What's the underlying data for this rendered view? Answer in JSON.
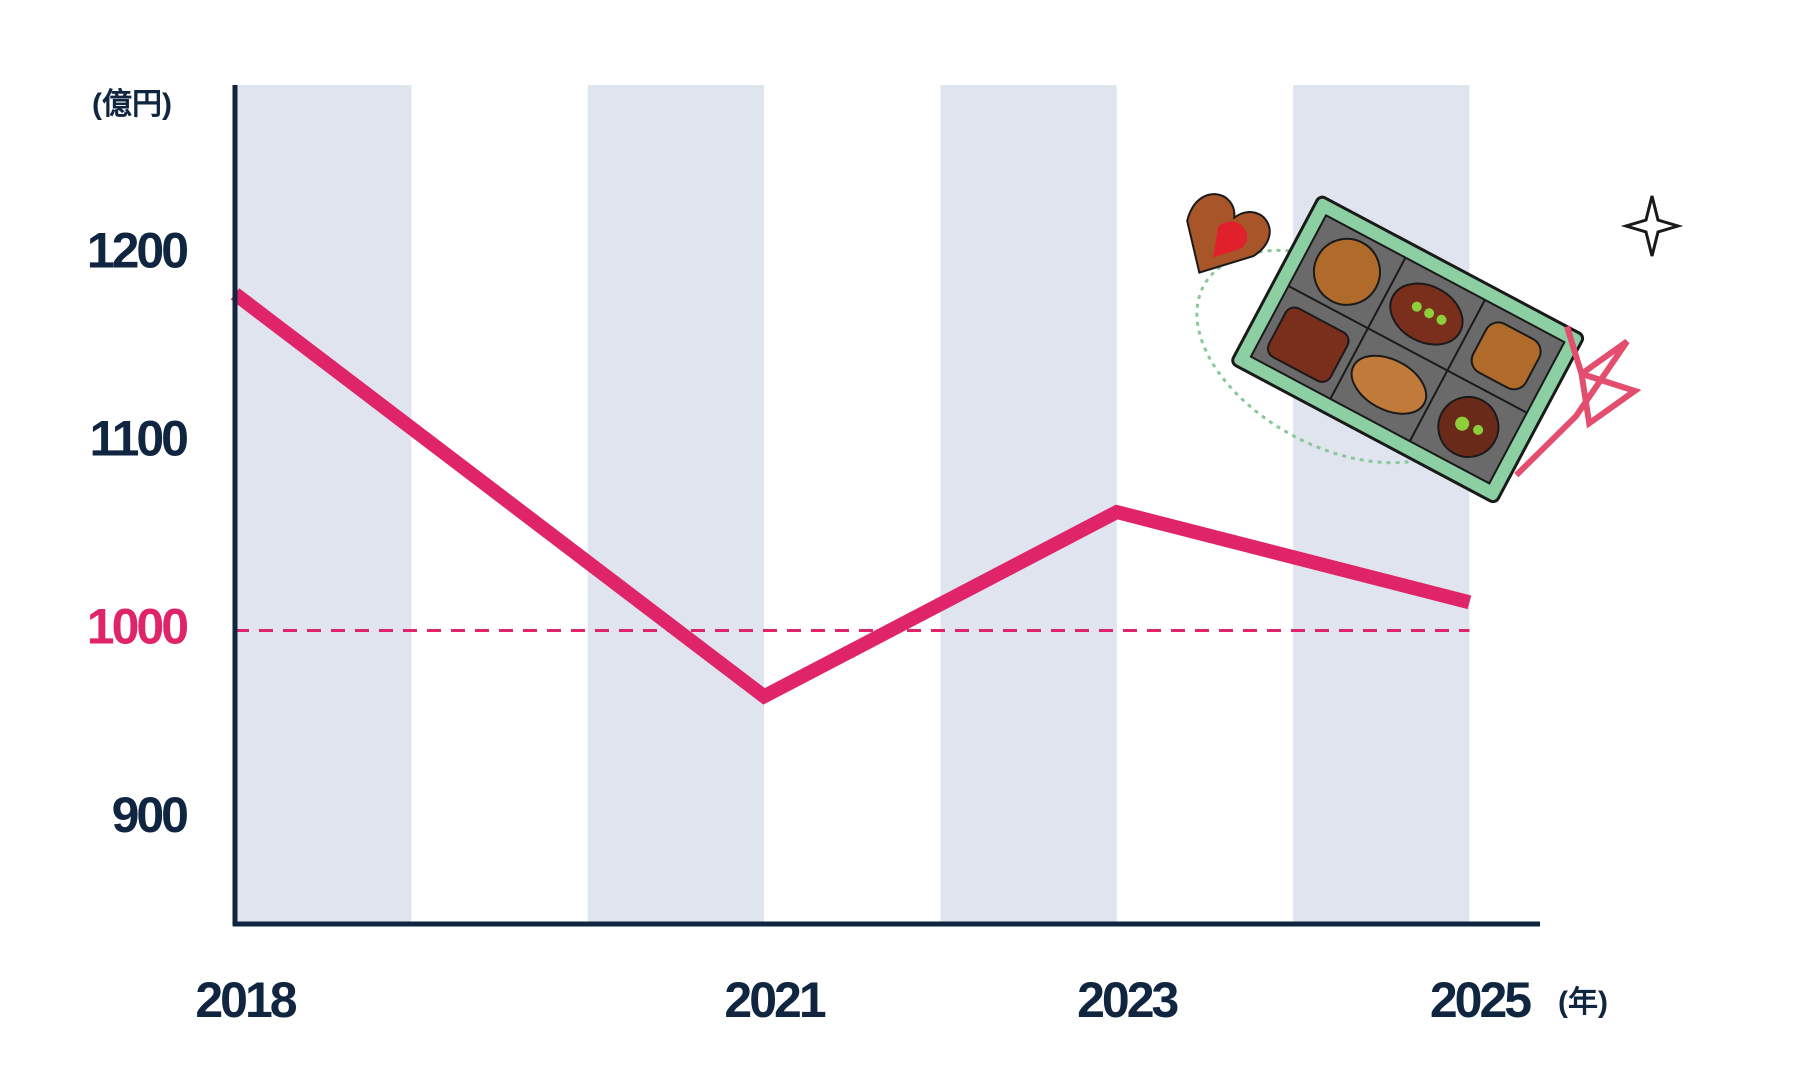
{
  "chart_data": {
    "type": "line",
    "y_unit": "(億円)",
    "x_unit": "(年)",
    "x": [
      2018,
      2021,
      2023,
      2025
    ],
    "series": [
      {
        "color": "#e0246a",
        "values": [
          1179,
          965,
          1063,
          1015
        ]
      }
    ],
    "xlim": [
      2018,
      2025.4
    ],
    "ylim": [
      844,
      1290
    ],
    "xticks": [
      2018,
      2021,
      2023,
      2025
    ],
    "yticks": [
      900,
      1000,
      1100,
      1200
    ],
    "reference_line": {
      "value": 1000,
      "color": "#e0246a"
    },
    "band_color": "#dfe4ee",
    "axis_color": "#0f2540"
  }
}
